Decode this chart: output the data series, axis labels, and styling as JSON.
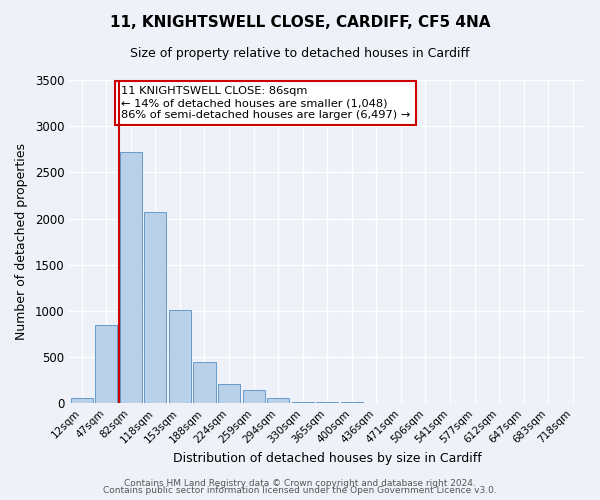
{
  "title": "11, KNIGHTSWELL CLOSE, CARDIFF, CF5 4NA",
  "subtitle": "Size of property relative to detached houses in Cardiff",
  "xlabel": "Distribution of detached houses by size in Cardiff",
  "ylabel": "Number of detached properties",
  "bar_color": "#b8d0e8",
  "bar_edge_color": "#6699cc",
  "background_color": "#eef2f8",
  "categories": [
    "12sqm",
    "47sqm",
    "82sqm",
    "118sqm",
    "153sqm",
    "188sqm",
    "224sqm",
    "259sqm",
    "294sqm",
    "330sqm",
    "365sqm",
    "400sqm",
    "436sqm",
    "471sqm",
    "506sqm",
    "541sqm",
    "577sqm",
    "612sqm",
    "647sqm",
    "683sqm",
    "718sqm"
  ],
  "values": [
    55,
    850,
    2720,
    2075,
    1010,
    450,
    205,
    145,
    55,
    15,
    15,
    10,
    5,
    5,
    2,
    1,
    1,
    0,
    0,
    0,
    0
  ],
  "ylim": [
    0,
    3500
  ],
  "yticks": [
    0,
    500,
    1000,
    1500,
    2000,
    2500,
    3000,
    3500
  ],
  "vline_color": "#cc0000",
  "vline_index": 2,
  "annotation_title": "11 KNIGHTSWELL CLOSE: 86sqm",
  "annotation_line1": "← 14% of detached houses are smaller (1,048)",
  "annotation_line2": "86% of semi-detached houses are larger (6,497) →",
  "annotation_box_color": "#ffffff",
  "annotation_box_edge": "#cc0000",
  "footer1": "Contains HM Land Registry data © Crown copyright and database right 2024.",
  "footer2": "Contains public sector information licensed under the Open Government Licence v3.0."
}
